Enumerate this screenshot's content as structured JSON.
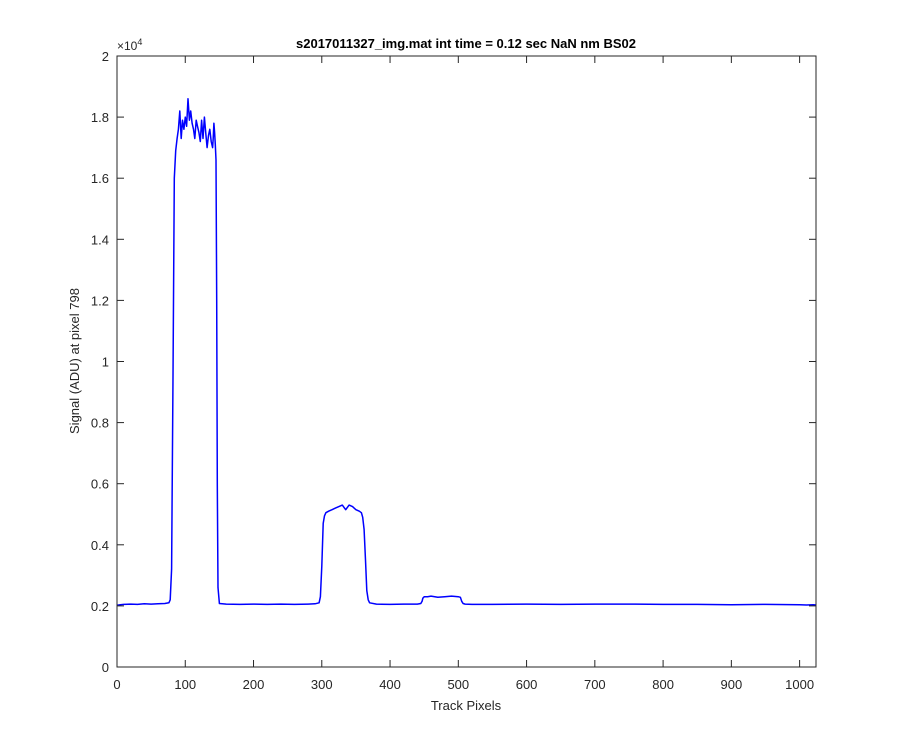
{
  "chart_data": {
    "type": "line",
    "title": "s2017011327_img.mat int time = 0.12 sec  NaN nm BS02",
    "xlabel": "Track Pixels",
    "ylabel": "Signal (ADU) at pixel 798",
    "y_exponent_base": "×10",
    "y_exponent_power": "4",
    "xlim": [
      0,
      1024
    ],
    "ylim": [
      0,
      20000
    ],
    "x_ticks": [
      0,
      100,
      200,
      300,
      400,
      500,
      600,
      700,
      800,
      900,
      1000
    ],
    "x_tick_labels": [
      "0",
      "100",
      "200",
      "300",
      "400",
      "500",
      "600",
      "700",
      "800",
      "900",
      "1000"
    ],
    "y_ticks": [
      0,
      2000,
      4000,
      6000,
      8000,
      10000,
      12000,
      14000,
      16000,
      18000,
      20000
    ],
    "y_tick_labels": [
      "0",
      "0.2",
      "0.4",
      "0.6",
      "0.8",
      "1",
      "1.2",
      "1.4",
      "1.6",
      "1.8",
      "2"
    ],
    "grid": false,
    "legend": "none",
    "series": [
      {
        "color": "#0000ff",
        "x": [
          0,
          5,
          10,
          20,
          30,
          40,
          50,
          60,
          70,
          76,
          78,
          80,
          82,
          84,
          86,
          88,
          90,
          92,
          94,
          96,
          98,
          100,
          102,
          104,
          106,
          108,
          110,
          112,
          114,
          116,
          118,
          120,
          122,
          124,
          126,
          128,
          130,
          132,
          134,
          136,
          138,
          140,
          141,
          142,
          143,
          144,
          145,
          146,
          147,
          148,
          150,
          160,
          180,
          200,
          220,
          240,
          260,
          280,
          290,
          296,
          298,
          300,
          302,
          304,
          306,
          310,
          315,
          320,
          325,
          330,
          335,
          340,
          345,
          350,
          355,
          358,
          360,
          362,
          364,
          366,
          368,
          370,
          380,
          400,
          420,
          440,
          445,
          447,
          448,
          450,
          455,
          460,
          470,
          480,
          490,
          500,
          503,
          505,
          507,
          510,
          520,
          550,
          600,
          650,
          700,
          750,
          800,
          850,
          900,
          950,
          1000,
          1010,
          1020,
          1024
        ],
        "y": [
          2020,
          2040,
          2050,
          2060,
          2050,
          2070,
          2060,
          2070,
          2080,
          2100,
          2200,
          3200,
          9500,
          16000,
          16900,
          17300,
          17600,
          18200,
          17300,
          17900,
          17600,
          18000,
          17700,
          18600,
          17900,
          18200,
          17800,
          17600,
          17300,
          17900,
          17700,
          17500,
          17200,
          17900,
          17300,
          18000,
          17500,
          17000,
          17400,
          17600,
          17200,
          17000,
          17300,
          17800,
          17500,
          17100,
          16600,
          12000,
          6000,
          2600,
          2080,
          2060,
          2050,
          2060,
          2050,
          2060,
          2050,
          2060,
          2070,
          2100,
          2300,
          3300,
          4700,
          4950,
          5050,
          5100,
          5150,
          5200,
          5250,
          5300,
          5150,
          5300,
          5250,
          5150,
          5100,
          5050,
          4900,
          4500,
          3500,
          2500,
          2200,
          2100,
          2060,
          2050,
          2060,
          2060,
          2080,
          2150,
          2250,
          2300,
          2300,
          2320,
          2280,
          2300,
          2320,
          2300,
          2280,
          2150,
          2080,
          2060,
          2050,
          2050,
          2060,
          2050,
          2060,
          2060,
          2050,
          2050,
          2040,
          2050,
          2040,
          2030,
          2040,
          2030
        ]
      }
    ]
  }
}
